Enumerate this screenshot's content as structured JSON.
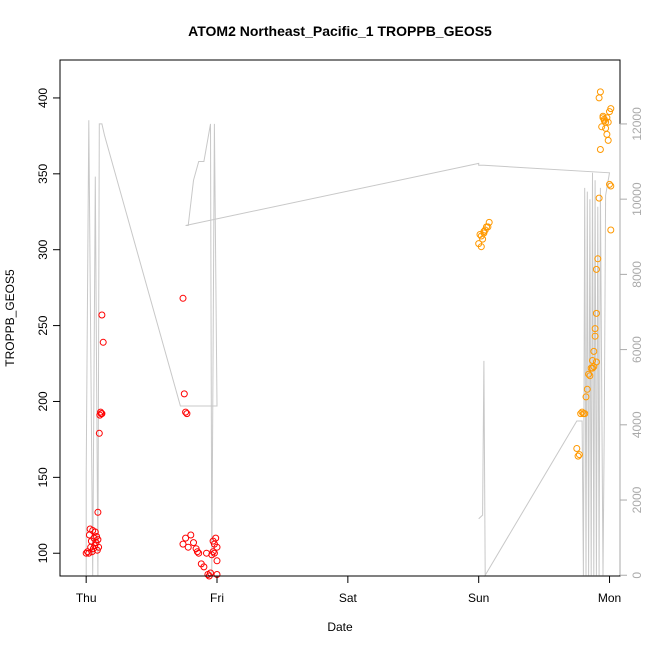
{
  "chart_data": {
    "type": "scatter",
    "title": "ATOM2 Northeast_Pacific_1 TROPPB_GEOS5",
    "xlabel": "Date",
    "ylabel": "TROPPB_GEOS5",
    "x_ticks": [
      "Thu",
      "Fri",
      "Sat",
      "Sun",
      "Mon"
    ],
    "xlim_days": [
      -0.2,
      4.08
    ],
    "ylim": [
      85,
      425
    ],
    "y_ticks": [
      100,
      150,
      200,
      250,
      300,
      350,
      400
    ],
    "y2lim": [
      -20,
      13700
    ],
    "y2_ticks": [
      0,
      2000,
      4000,
      6000,
      8000,
      10000,
      12000
    ],
    "grid": false,
    "colors": {
      "red": "#ff0000",
      "orange": "#ff9900",
      "line": "#c8c8c8"
    },
    "series": [
      {
        "marker": "circle-open",
        "color": "#ff0000",
        "points": [
          [
            0.0,
            100
          ],
          [
            0.01,
            101
          ],
          [
            0.02,
            100
          ],
          [
            0.025,
            112
          ],
          [
            0.03,
            116
          ],
          [
            0.035,
            104
          ],
          [
            0.04,
            108
          ],
          [
            0.045,
            101
          ],
          [
            0.05,
            115
          ],
          [
            0.055,
            103
          ],
          [
            0.06,
            110
          ],
          [
            0.065,
            105
          ],
          [
            0.07,
            114
          ],
          [
            0.075,
            107
          ],
          [
            0.08,
            111
          ],
          [
            0.085,
            102
          ],
          [
            0.09,
            109
          ],
          [
            0.095,
            104
          ],
          [
            0.09,
            127
          ],
          [
            0.1,
            179
          ],
          [
            0.105,
            191
          ],
          [
            0.11,
            193
          ],
          [
            0.115,
            192
          ],
          [
            0.12,
            192
          ],
          [
            0.13,
            239
          ],
          [
            0.12,
            257
          ],
          [
            0.74,
            106
          ],
          [
            0.76,
            110
          ],
          [
            0.78,
            104
          ],
          [
            0.8,
            112
          ],
          [
            0.82,
            107
          ],
          [
            0.84,
            103
          ],
          [
            0.85,
            101
          ],
          [
            0.86,
            100
          ],
          [
            0.88,
            93
          ],
          [
            0.9,
            91
          ],
          [
            0.92,
            100
          ],
          [
            0.93,
            86
          ],
          [
            0.94,
            85
          ],
          [
            0.95,
            87
          ],
          [
            0.96,
            99
          ],
          [
            0.97,
            101
          ],
          [
            0.98,
            100
          ],
          [
            0.99,
            110
          ],
          [
            1.0,
            104
          ],
          [
            1.0,
            95
          ],
          [
            1.0,
            86
          ],
          [
            0.97,
            108
          ],
          [
            0.98,
            106
          ],
          [
            0.74,
            268
          ],
          [
            0.75,
            205
          ],
          [
            0.76,
            193
          ],
          [
            0.77,
            192
          ]
        ]
      },
      {
        "marker": "circle-open",
        "color": "#ff9900",
        "points": [
          [
            3.0,
            304
          ],
          [
            3.01,
            310
          ],
          [
            3.02,
            302
          ],
          [
            3.03,
            307
          ],
          [
            3.04,
            312
          ],
          [
            3.05,
            313
          ],
          [
            3.06,
            315
          ],
          [
            3.07,
            315
          ],
          [
            3.08,
            318
          ],
          [
            3.02,
            309
          ],
          [
            3.04,
            311
          ],
          [
            3.75,
            169
          ],
          [
            3.76,
            164
          ],
          [
            3.77,
            165
          ],
          [
            3.78,
            192
          ],
          [
            3.79,
            193
          ],
          [
            3.8,
            192
          ],
          [
            3.81,
            192
          ],
          [
            3.82,
            203
          ],
          [
            3.83,
            208
          ],
          [
            3.84,
            218
          ],
          [
            3.85,
            217
          ],
          [
            3.86,
            222
          ],
          [
            3.87,
            227
          ],
          [
            3.88,
            233
          ],
          [
            3.89,
            243
          ],
          [
            3.9,
            258
          ],
          [
            3.9,
            287
          ],
          [
            3.91,
            294
          ],
          [
            3.92,
            334
          ],
          [
            3.93,
            366
          ],
          [
            3.94,
            381
          ],
          [
            3.95,
            387
          ],
          [
            3.96,
            385
          ],
          [
            3.97,
            380
          ],
          [
            3.98,
            376
          ],
          [
            3.99,
            372
          ],
          [
            3.92,
            400
          ],
          [
            3.93,
            404
          ],
          [
            3.95,
            388
          ],
          [
            3.96,
            386
          ],
          [
            3.97,
            384
          ],
          [
            3.98,
            387
          ],
          [
            3.99,
            384
          ],
          [
            4.0,
            391
          ],
          [
            4.01,
            393
          ],
          [
            4.0,
            343
          ],
          [
            4.01,
            342
          ],
          [
            4.01,
            313
          ],
          [
            3.89,
            248
          ],
          [
            3.9,
            226
          ],
          [
            3.88,
            223
          ],
          [
            3.87,
            222
          ]
        ]
      }
    ],
    "altitude_line": {
      "axis": "right",
      "color": "#c8c8c8",
      "points": [
        [
          0.0,
          0
        ],
        [
          0.0,
          2700
        ],
        [
          0.02,
          12100
        ],
        [
          0.05,
          0
        ],
        [
          0.07,
          10600
        ],
        [
          0.09,
          0
        ],
        [
          0.1,
          12000
        ],
        [
          0.12,
          12000
        ],
        [
          0.14,
          11700
        ],
        [
          0.72,
          4500
        ],
        [
          1.0,
          4500
        ],
        [
          0.98,
          12000
        ],
        [
          0.96,
          0
        ],
        [
          0.95,
          12000
        ],
        [
          0.9,
          11000
        ],
        [
          0.86,
          11000
        ],
        [
          0.82,
          10500
        ],
        [
          0.78,
          9300
        ],
        [
          0.76,
          9300
        ],
        [
          3.0,
          10950
        ],
        [
          3.0,
          10900
        ],
        [
          3.04,
          10900
        ],
        [
          4.0,
          10700
        ],
        [
          3.97,
          10100
        ],
        [
          3.96,
          4100
        ],
        [
          3.95,
          0
        ],
        [
          3.94,
          5000
        ],
        [
          3.93,
          10300
        ],
        [
          3.92,
          0
        ],
        [
          3.91,
          9800
        ],
        [
          3.9,
          0
        ],
        [
          3.89,
          10500
        ],
        [
          3.88,
          0
        ],
        [
          3.87,
          10700
        ],
        [
          3.86,
          0
        ],
        [
          3.85,
          10000
        ],
        [
          3.84,
          0
        ],
        [
          3.83,
          10200
        ],
        [
          3.82,
          0
        ],
        [
          3.81,
          10300
        ],
        [
          3.8,
          0
        ],
        [
          3.79,
          4100
        ],
        [
          3.75,
          4100
        ],
        [
          3.05,
          0
        ],
        [
          3.04,
          5700
        ],
        [
          3.03,
          1600
        ],
        [
          3.0,
          1500
        ]
      ]
    }
  }
}
